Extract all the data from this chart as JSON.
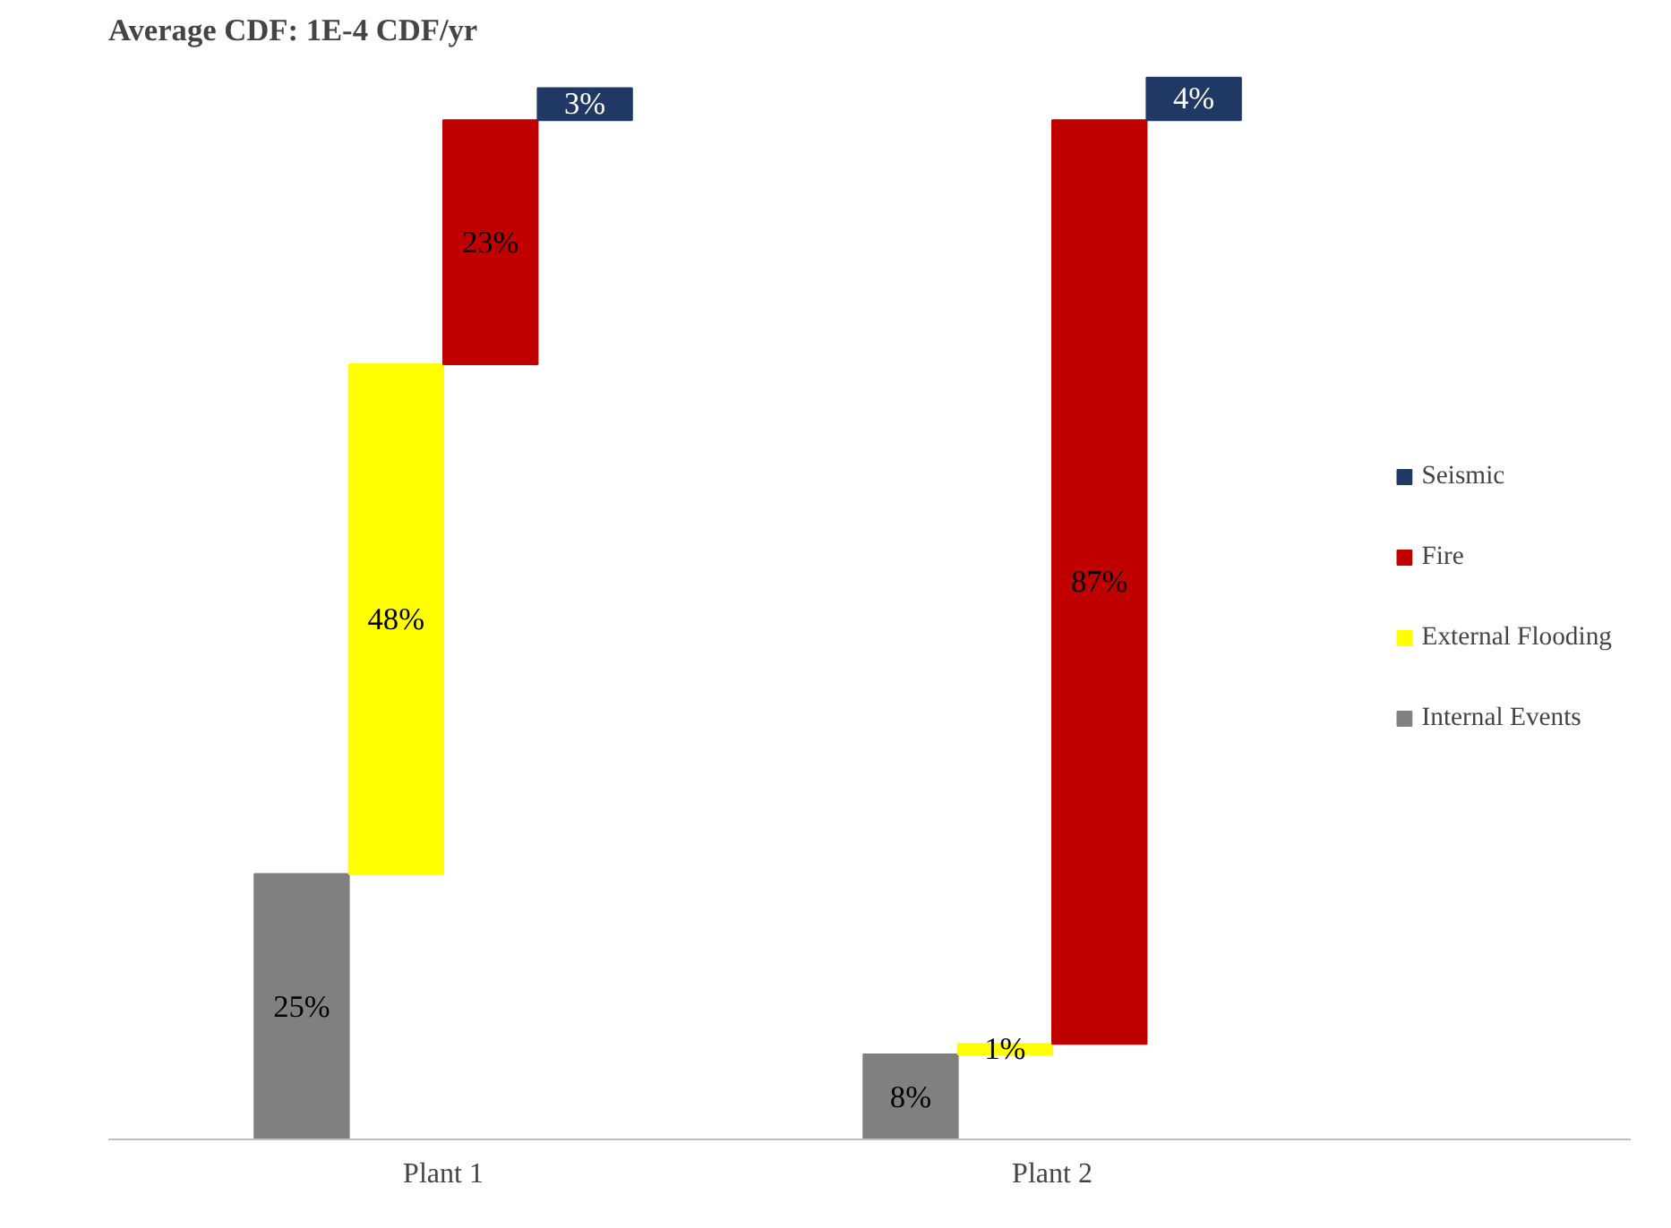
{
  "chart_data": {
    "type": "bar",
    "title": "Average CDF: 1E-4 CDF/yr",
    "categories": [
      "Plant 1",
      "Plant 2"
    ],
    "stacked": true,
    "legend": "right",
    "grid": false,
    "series": [
      {
        "name": "Internal Events",
        "color": "#808080",
        "values": [
          25,
          8
        ],
        "value_labels": [
          "25%",
          "8%"
        ]
      },
      {
        "name": "External Flooding",
        "color": "#ffff00",
        "values": [
          48,
          1
        ],
        "value_labels": [
          "48%",
          "1%"
        ]
      },
      {
        "name": "Fire",
        "color": "#c00000",
        "values": [
          23,
          87
        ],
        "value_labels": [
          "23%",
          "87%"
        ]
      },
      {
        "name": "Seismic",
        "color": "#1f3864",
        "values": [
          3,
          4
        ],
        "value_labels": [
          "3%",
          "4%"
        ]
      }
    ]
  }
}
